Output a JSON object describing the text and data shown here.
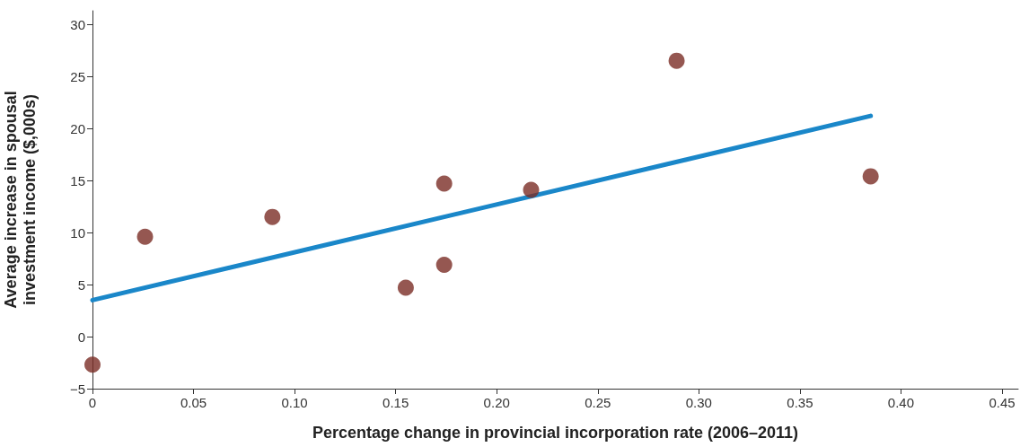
{
  "chart_data": {
    "type": "scatter",
    "xlabel": "Percentage change in provincial incorporation rate (2006–2011)",
    "ylabel": "Average increase in spousal investment income ($,000s)",
    "xlim": [
      0,
      0.458
    ],
    "ylim": [
      -5,
      31.3
    ],
    "xticks": [
      0,
      {
        "value": 0.05,
        "label": "0.05"
      },
      {
        "value": 0.1,
        "label": "0.10"
      },
      {
        "value": 0.15,
        "label": "0.15"
      },
      {
        "value": 0.2,
        "label": "0.20"
      },
      {
        "value": 0.25,
        "label": "0.25"
      },
      {
        "value": 0.3,
        "label": "0.30"
      },
      {
        "value": 0.35,
        "label": "0.35"
      },
      {
        "value": 0.4,
        "label": "0.40"
      },
      {
        "value": 0.45,
        "label": "0.45"
      }
    ],
    "yticks": [
      {
        "value": -5,
        "label": "−5"
      },
      0,
      5,
      10,
      15,
      20,
      25,
      30
    ],
    "grid": false,
    "series": [
      {
        "color": "#7b2d26",
        "marker": "circle",
        "x": [
          0,
          0.026,
          0.089,
          0.155,
          0.174,
          0.174,
          0.217,
          0.289,
          0.385
        ],
        "values": [
          -2.7,
          9.6,
          11.5,
          4.7,
          14.7,
          6.9,
          14.1,
          26.5,
          15.4
        ]
      },
      {
        "type": "line",
        "color": "#1a87c9",
        "marker": "none",
        "line_style": "solid",
        "x": [
          0,
          0.385
        ],
        "values": [
          3.5,
          21.2
        ]
      }
    ]
  }
}
